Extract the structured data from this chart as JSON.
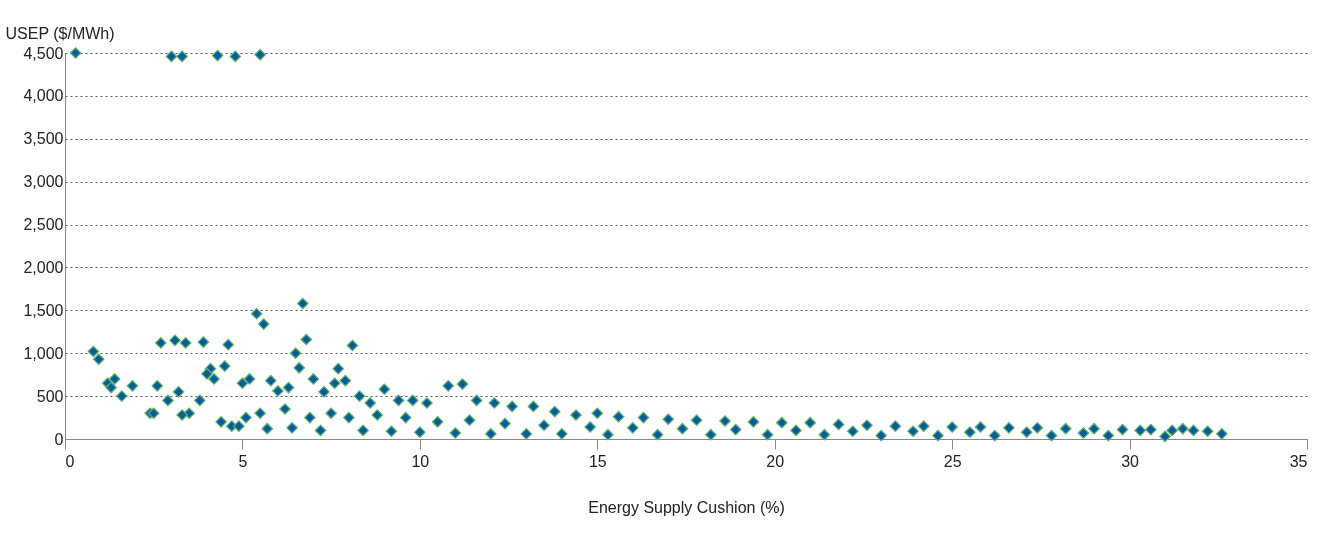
{
  "chart_data": {
    "type": "scatter",
    "xlabel": "Energy Supply Cushion (%)",
    "ylabel": "USEP ($/MWh)",
    "xlim": [
      0,
      35
    ],
    "xticks": [
      0,
      5,
      10,
      15,
      20,
      25,
      30,
      35
    ],
    "ylim": [
      0,
      4500
    ],
    "yticks": [
      0,
      {
        "value": 500,
        "label": "500"
      },
      {
        "value": 1000,
        "label": "1,000"
      },
      {
        "value": 1500,
        "label": "1,500"
      },
      {
        "value": 2000,
        "label": "2,000"
      },
      {
        "value": 2500,
        "label": "2,500"
      },
      {
        "value": 3000,
        "label": "3,000"
      },
      {
        "value": 3500,
        "label": "3,500"
      },
      {
        "value": 4000,
        "label": "4,000"
      },
      {
        "value": 4500,
        "label": "4,500"
      }
    ],
    "grid": "y",
    "marker": "diamond",
    "legend": false,
    "series": [
      {
        "color": "#0a5a9c",
        "x": [
          0.3,
          3.0,
          3.3,
          4.3,
          4.8,
          5.5,
          0.8,
          0.95,
          2.7,
          3.1,
          3.4,
          3.9,
          4.6,
          5.4,
          5.6,
          6.7,
          6.8,
          8.1,
          6.5,
          6.6,
          7.7,
          1.2,
          1.4,
          1.3,
          1.6,
          1.9,
          2.4,
          2.6,
          2.9,
          3.2,
          3.5,
          3.8,
          4.1,
          4.4,
          4.5,
          4.2,
          2.5,
          3.3,
          4.0,
          4.7,
          5.0,
          5.2,
          5.8,
          6.0,
          6.3,
          7.0,
          7.3,
          7.6,
          7.9,
          8.3,
          8.6,
          9.0,
          9.4,
          9.8,
          10.2,
          10.8,
          11.2,
          11.6,
          12.1,
          12.6,
          13.2,
          13.8,
          14.4,
          15.0,
          15.6,
          16.3,
          17.0,
          17.8,
          18.6,
          19.4,
          20.2,
          21.0,
          21.8,
          22.6,
          23.4,
          24.2,
          25.0,
          25.8,
          26.6,
          27.4,
          28.2,
          29.0,
          29.8,
          30.6,
          31.2,
          31.8,
          32.2,
          32.6,
          5.1,
          5.5,
          6.2,
          6.9,
          7.5,
          8.0,
          8.8,
          9.6,
          10.5,
          11.4,
          12.4,
          13.5,
          14.8,
          16.0,
          17.4,
          18.9,
          20.6,
          22.2,
          23.9,
          25.5,
          27.1,
          28.7,
          30.3,
          31.5,
          4.9,
          5.7,
          6.4,
          7.2,
          8.4,
          9.2,
          10.0,
          11.0,
          12.0,
          13.0,
          14.0,
          15.3,
          16.7,
          18.2,
          19.8,
          21.4,
          23.0,
          24.6,
          26.2,
          27.8,
          29.4,
          31.0
        ],
        "values": [
          4500,
          4460,
          4460,
          4470,
          4460,
          4480,
          1020,
          930,
          1120,
          1150,
          1120,
          1130,
          1100,
          1460,
          1340,
          1580,
          1160,
          1090,
          1000,
          830,
          820,
          650,
          700,
          600,
          500,
          620,
          300,
          620,
          450,
          550,
          300,
          450,
          820,
          200,
          850,
          700,
          300,
          280,
          760,
          150,
          650,
          700,
          680,
          560,
          600,
          700,
          550,
          650,
          680,
          500,
          420,
          580,
          450,
          450,
          420,
          620,
          640,
          450,
          420,
          380,
          380,
          320,
          280,
          300,
          260,
          250,
          230,
          220,
          210,
          200,
          190,
          190,
          170,
          160,
          150,
          150,
          140,
          140,
          130,
          130,
          120,
          120,
          110,
          110,
          100,
          100,
          90,
          60,
          250,
          300,
          350,
          250,
          300,
          250,
          280,
          250,
          200,
          220,
          180,
          160,
          140,
          130,
          120,
          110,
          100,
          90,
          90,
          80,
          80,
          70,
          100,
          120,
          150,
          120,
          130,
          100,
          100,
          90,
          80,
          70,
          60,
          60,
          60,
          50,
          50,
          50,
          50,
          50,
          40,
          40,
          40,
          40,
          40,
          30
        ]
      }
    ]
  }
}
